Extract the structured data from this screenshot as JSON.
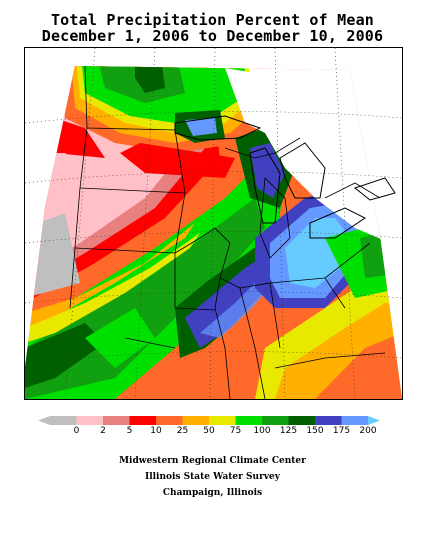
{
  "title": {
    "line1": "Total Precipitation Percent of Mean",
    "line2": "December 1, 2006 to December 10, 2006"
  },
  "legend": {
    "bins": [
      {
        "label": "0",
        "color": "#bfbfbf"
      },
      {
        "label": "2",
        "color": "#ffc0c8"
      },
      {
        "label": "5",
        "color": "#e88080"
      },
      {
        "label": "10",
        "color": "#ff0000"
      },
      {
        "label": "25",
        "color": "#ff6a2a"
      },
      {
        "label": "50",
        "color": "#ffb000"
      },
      {
        "label": "75",
        "color": "#e8e800"
      },
      {
        "label": "100",
        "color": "#00e000"
      },
      {
        "label": "125",
        "color": "#10a010"
      },
      {
        "label": "150",
        "color": "#006000"
      },
      {
        "label": "175",
        "color": "#4040c0"
      },
      {
        "label": "200",
        "color": "#6699ff"
      }
    ],
    "overflow_color": "#66ccff"
  },
  "credits": {
    "line1": "Midwestern Regional Climate Center",
    "line2": "Illinois State Water Survey",
    "line3": "Champaign, Illinois"
  }
}
